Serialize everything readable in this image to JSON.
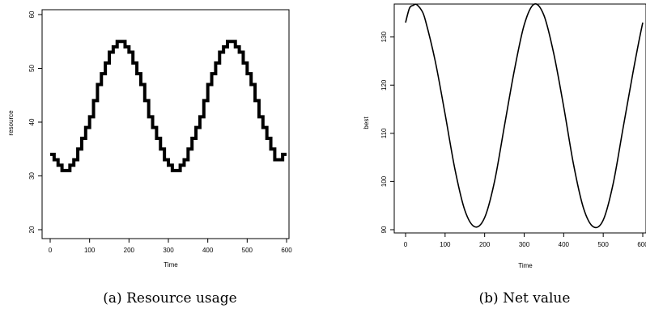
{
  "chart_data": [
    {
      "type": "line",
      "caption": "(a) Resource usage",
      "xlabel": "Time",
      "ylabel": "resource",
      "xlim": [
        0,
        600
      ],
      "ylim": [
        20,
        60
      ],
      "xticks": [
        0,
        100,
        200,
        300,
        400,
        500,
        600
      ],
      "yticks": [
        20,
        30,
        40,
        50,
        60
      ],
      "grid": false,
      "series": [
        {
          "stepped": true,
          "x": [
            0,
            10,
            20,
            30,
            40,
            50,
            60,
            70,
            80,
            90,
            100,
            110,
            120,
            130,
            140,
            150,
            160,
            170,
            180,
            190,
            200,
            210,
            220,
            230,
            240,
            250,
            260,
            270,
            280,
            290,
            300,
            310,
            320,
            330,
            340,
            350,
            360,
            370,
            380,
            390,
            400,
            410,
            420,
            430,
            440,
            450,
            460,
            470,
            480,
            490,
            500,
            510,
            520,
            530,
            540,
            550,
            560,
            570,
            580,
            590,
            600
          ],
          "y": [
            34,
            33,
            32,
            31,
            31,
            32,
            33,
            35,
            37,
            39,
            41,
            44,
            47,
            49,
            51,
            53,
            54,
            55,
            55,
            54,
            53,
            51,
            49,
            47,
            44,
            41,
            39,
            37,
            35,
            33,
            32,
            31,
            31,
            32,
            33,
            35,
            37,
            39,
            41,
            44,
            47,
            49,
            51,
            53,
            54,
            55,
            55,
            54,
            53,
            51,
            49,
            47,
            44,
            41,
            39,
            37,
            35,
            33,
            33,
            34,
            34
          ]
        }
      ]
    },
    {
      "type": "line",
      "caption": "(b) Net value",
      "xlabel": "Time",
      "ylabel": "best",
      "xlim": [
        0,
        600
      ],
      "ylim": [
        90,
        136
      ],
      "xticks": [
        0,
        100,
        200,
        300,
        400,
        500,
        600
      ],
      "yticks": [
        90,
        100,
        110,
        120,
        130
      ],
      "grid": false,
      "series": [
        {
          "x": [
            0,
            10,
            20,
            25,
            30,
            40,
            50,
            75,
            100,
            125,
            150,
            175,
            200,
            225,
            250,
            275,
            300,
            325,
            350,
            375,
            400,
            425,
            450,
            475,
            500,
            525,
            550,
            575,
            590,
            600
          ],
          "y": [
            133,
            136,
            136.6,
            136.8,
            136.6,
            135.6,
            133.5,
            125,
            114,
            102.5,
            94,
            90.6,
            92.5,
            100,
            111.5,
            123,
            132.5,
            136.8,
            134.5,
            126.5,
            115.5,
            103.5,
            94.5,
            90.6,
            92,
            99.5,
            111,
            122.5,
            129,
            133
          ]
        }
      ]
    }
  ]
}
